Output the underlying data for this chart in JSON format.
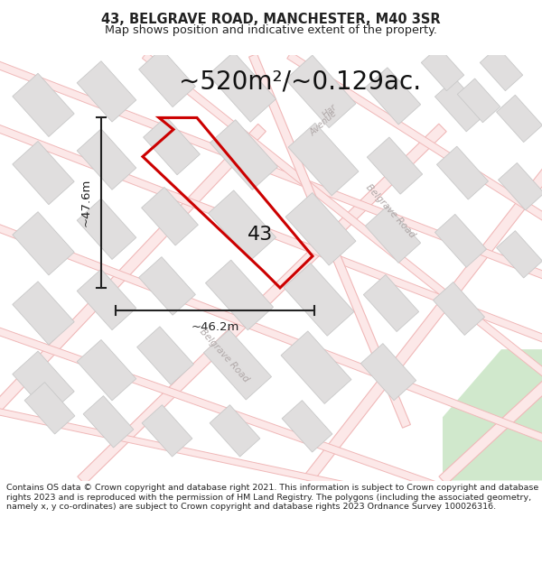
{
  "title": "43, BELGRAVE ROAD, MANCHESTER, M40 3SR",
  "subtitle": "Map shows position and indicative extent of the property.",
  "area_text": "~520m²/~0.129ac.",
  "width_label": "~46.2m",
  "height_label": "~47.6m",
  "number_label": "43",
  "footer": "Contains OS data © Crown copyright and database right 2021. This information is subject to Crown copyright and database rights 2023 and is reproduced with the permission of HM Land Registry. The polygons (including the associated geometry, namely x, y co-ordinates) are subject to Crown copyright and database rights 2023 Ordnance Survey 100026316.",
  "map_bg": "#f8f6f4",
  "road_line_color": "#f0b8b8",
  "road_fill_color": "#fce8e8",
  "building_fill": "#e0dede",
  "building_edge": "#c8c8c8",
  "green_fill": "#d0e8cc",
  "plot_color": "#cc0000",
  "dim_color": "#222222",
  "street_color": "#b0a8a8",
  "title_color": "#222222",
  "area_color": "#111111",
  "footer_color": "#222222",
  "header_bg": "#ffffff",
  "footer_bg": "#ffffff"
}
